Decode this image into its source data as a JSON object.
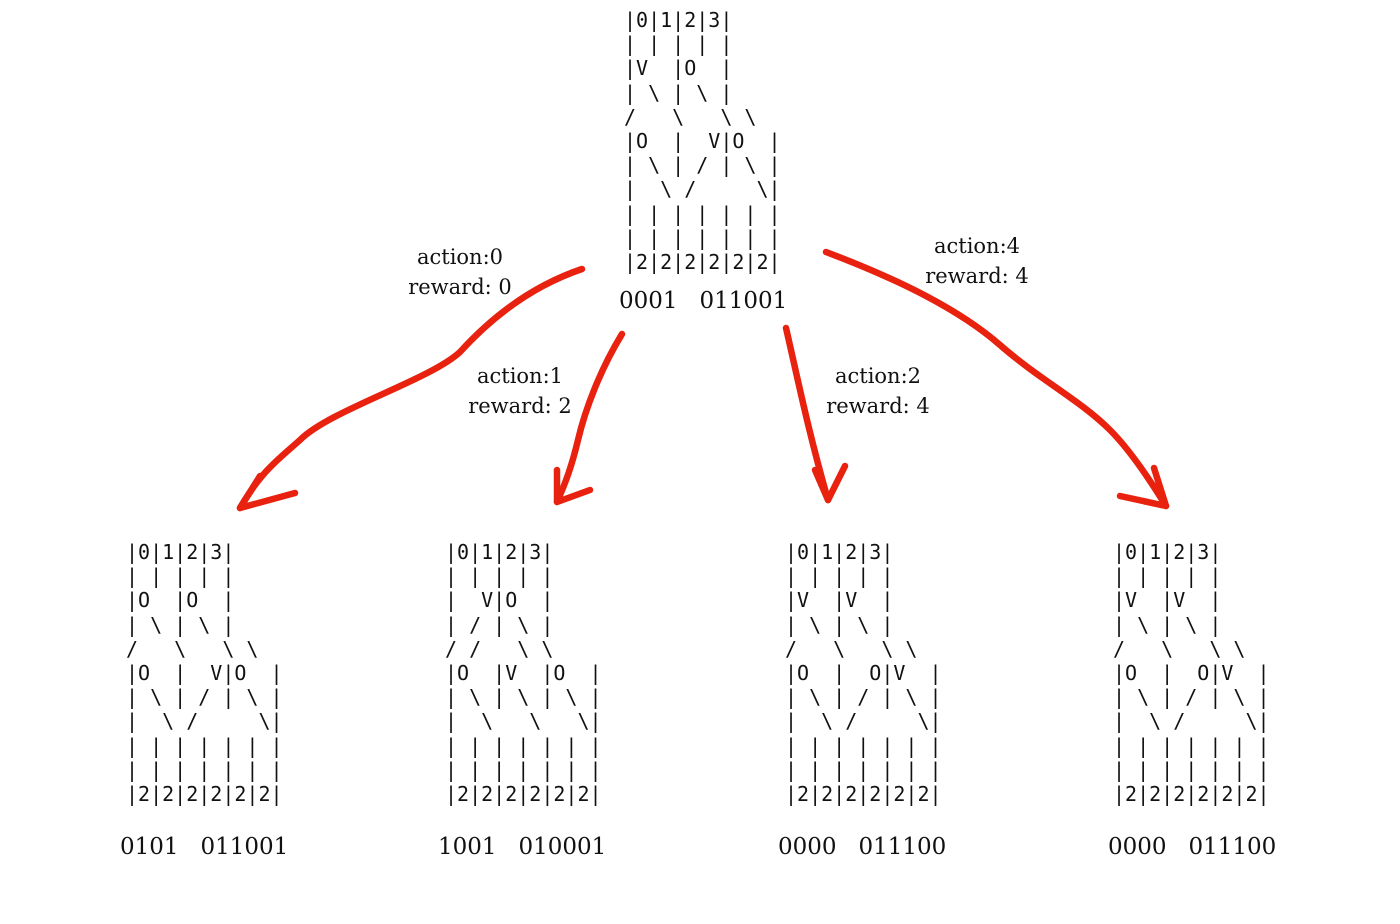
{
  "colors": {
    "arrow": "#e8220f",
    "text": "#111111",
    "background": "#ffffff"
  },
  "root": {
    "board": "|0|1|2|3|\n| | | | |\n|V  |O  |\n| \\ | \\ |\n/   \\   \\ \\\n|O  |  V|O  |\n| \\ | / | \\ |\n|  \\ /     \\|\n| | | | | | |\n| | | | | | |\n|2|2|2|2|2|2|",
    "state": "0001   011001"
  },
  "edges": [
    {
      "action": "action:0",
      "reward": "reward: 0"
    },
    {
      "action": "action:1",
      "reward": "reward: 2"
    },
    {
      "action": "action:2",
      "reward": "reward: 4"
    },
    {
      "action": "action:4",
      "reward": "reward: 4"
    }
  ],
  "children": [
    {
      "board": "|0|1|2|3|\n| | | | |\n|O  |O  |\n| \\ | \\ |\n/   \\   \\ \\\n|O  |  V|O  |\n| \\ | / | \\ |\n|  \\ /     \\|\n| | | | | | |\n| | | | | | |\n|2|2|2|2|2|2|",
      "state": "0101   011001"
    },
    {
      "board": "|0|1|2|3|\n| | | | |\n|  V|O  |\n| / | \\ |\n/ /   \\ \\\n|O  |V  |O  |\n| \\ | \\ | \\ |\n|  \\   \\   \\|\n| | | | | | |\n| | | | | | |\n|2|2|2|2|2|2|",
      "state": "1001   010001"
    },
    {
      "board": "|0|1|2|3|\n| | | | |\n|V  |V  |\n| \\ | \\ |\n/   \\   \\ \\\n|O  |  O|V  |\n| \\ | / | \\ |\n|  \\ /     \\|\n| | | | | | |\n| | | | | | |\n|2|2|2|2|2|2|",
      "state": "0000   011100"
    },
    {
      "board": "|0|1|2|3|\n| | | | |\n|V  |V  |\n| \\ | \\ |\n/   \\   \\ \\\n|O  |  O|V  |\n| \\ | / | \\ |\n|  \\ /     \\|\n| | | | | | |\n| | | | | | |\n|2|2|2|2|2|2|",
      "state": "0000   011100"
    }
  ]
}
